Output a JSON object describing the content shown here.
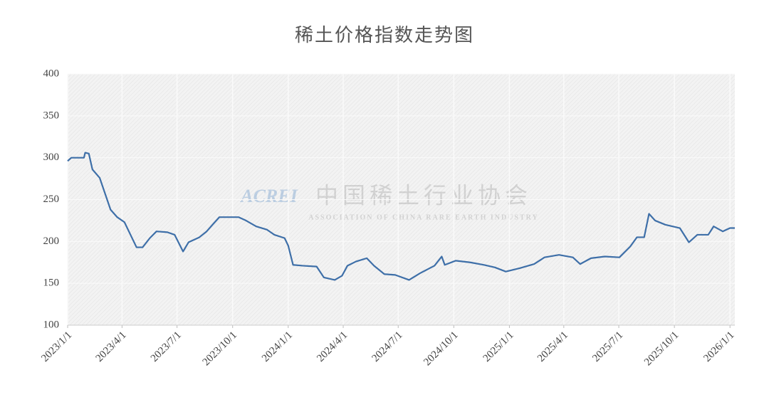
{
  "chart_data": {
    "type": "line",
    "title": "稀土价格指数走势图",
    "watermark": {
      "logo": "ACREI",
      "name": "中国稀土行业协会",
      "subtitle": "ASSOCIATION OF CHINA RARE EARTH INDUSTRY"
    },
    "x": [
      "2023/1/1",
      "2023/1/7",
      "2023/1/28",
      "2023/1/30",
      "2023/2/5",
      "2023/2/11",
      "2023/2/23",
      "2023/3/4",
      "2023/3/13",
      "2023/3/24",
      "2023/4/5",
      "2023/4/15",
      "2023/4/25",
      "2023/5/5",
      "2023/5/17",
      "2023/5/28",
      "2023/6/15",
      "2023/6/27",
      "2023/7/11",
      "2023/7/20",
      "2023/8/7",
      "2023/8/19",
      "2023/8/30",
      "2023/9/9",
      "2023/9/23",
      "2023/10/11",
      "2023/10/23",
      "2023/11/9",
      "2023/11/27",
      "2023/12/9",
      "2023/12/26",
      "2024/1/1",
      "2024/1/9",
      "2024/1/25",
      "2024/2/17",
      "2024/2/29",
      "2024/3/18",
      "2024/3/30",
      "2024/4/8",
      "2024/4/22",
      "2024/5/10",
      "2024/5/22",
      "2024/6/8",
      "2024/6/26",
      "2024/7/19",
      "2024/8/6",
      "2024/8/30",
      "2024/9/11",
      "2024/9/16",
      "2024/10/4",
      "2024/10/28",
      "2024/11/20",
      "2024/12/8",
      "2024/12/26",
      "2025/1/18",
      "2025/2/11",
      "2025/2/28",
      "2025/3/24",
      "2025/4/16",
      "2025/4/28",
      "2025/5/16",
      "2025/6/8",
      "2025/7/2",
      "2025/7/20",
      "2025/7/31",
      "2025/8/12",
      "2025/8/20",
      "2025/8/30",
      "2025/9/16",
      "2025/10/10",
      "2025/10/25",
      "2025/11/8",
      "2025/11/26",
      "2025/12/5",
      "2025/12/20",
      "2026/1/1",
      "2026/1/9"
    ],
    "series": [
      {
        "name": "稀土价格指数",
        "color": "#3e6fa8",
        "values": [
          296,
          300,
          300,
          306,
          305,
          286,
          276,
          257,
          238,
          229,
          223,
          208,
          193,
          193,
          204,
          212,
          211,
          208,
          188,
          199,
          205,
          212,
          221,
          229,
          229,
          229,
          225,
          218,
          214,
          208,
          204,
          195,
          172,
          171,
          170,
          157,
          154,
          159,
          171,
          176,
          180,
          171,
          161,
          160,
          154,
          162,
          171,
          182,
          172,
          177,
          175,
          172,
          169,
          164,
          168,
          173,
          181,
          184,
          181,
          173,
          180,
          182,
          181,
          194,
          205,
          205,
          233,
          225,
          220,
          216,
          199,
          208,
          208,
          218,
          212,
          216,
          216
        ]
      }
    ],
    "xlim": [
      "2023/1/1",
      "2026/1/9"
    ],
    "xticks": [
      "2023/1/1",
      "2023/4/1",
      "2023/7/1",
      "2023/10/1",
      "2024/1/1",
      "2024/4/1",
      "2024/7/1",
      "2024/10/1",
      "2025/1/1",
      "2025/4/1",
      "2025/7/1",
      "2025/10/1",
      "2026/1/1"
    ],
    "ylim": [
      100,
      400
    ],
    "yticks": [
      100,
      150,
      200,
      250,
      300,
      350,
      400
    ],
    "grid": true
  }
}
